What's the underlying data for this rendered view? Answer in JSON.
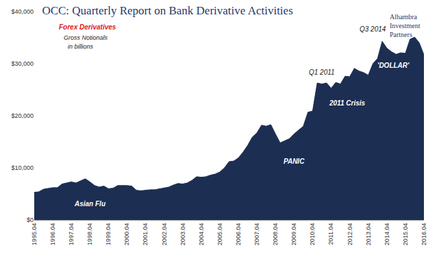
{
  "chart_data": {
    "type": "area",
    "title": "OCC: Quarterly Report on Bank Derivative Activities",
    "logo": [
      "Alhambra",
      "Investment",
      "Partners"
    ],
    "annotations": [
      "Forex Derivatives",
      "Gross Notionals",
      "in billions",
      "Asian Flu",
      "PANIC",
      "Q1 2011",
      "2011 Crisis",
      "Q3 2014",
      "'DOLLAR'"
    ],
    "categories": [
      "1995.04",
      null,
      null,
      null,
      "1996.04",
      null,
      null,
      null,
      "1997.04",
      null,
      null,
      null,
      "1998.04",
      null,
      null,
      null,
      "1999.04",
      null,
      null,
      null,
      "2000.04",
      null,
      null,
      null,
      "2001.04",
      null,
      null,
      null,
      "2002.04",
      null,
      null,
      null,
      "2003.04",
      null,
      null,
      null,
      "2004.04",
      null,
      null,
      null,
      "2005.04",
      null,
      null,
      null,
      "2006.04",
      null,
      null,
      null,
      "2007.04",
      null,
      null,
      null,
      "2008.04",
      null,
      null,
      null,
      "2009.04",
      null,
      null,
      null,
      "2010.04",
      null,
      null,
      null,
      "2011.04",
      null,
      null,
      null,
      "2012.04",
      null,
      null,
      null,
      "2013.04",
      null,
      null,
      null,
      "2014.04",
      null,
      null,
      null,
      "2015.04",
      null,
      null,
      null,
      "2016.04"
    ],
    "values": [
      5300,
      5400,
      5900,
      6100,
      6200,
      6200,
      6900,
      7100,
      7300,
      7100,
      7500,
      7900,
      7300,
      6600,
      6300,
      6500,
      6000,
      6100,
      6600,
      6600,
      6600,
      6500,
      5700,
      5600,
      5700,
      5800,
      5800,
      6000,
      6100,
      6300,
      6700,
      7000,
      6900,
      7100,
      7600,
      8300,
      8200,
      8300,
      8600,
      8800,
      9200,
      10000,
      11200,
      11300,
      11900,
      13000,
      14300,
      15900,
      16700,
      18200,
      18000,
      18300,
      16500,
      14800,
      15200,
      15600,
      16500,
      17300,
      18000,
      20700,
      20900,
      26300,
      26100,
      26300,
      25300,
      26400,
      26100,
      27600,
      27500,
      29100,
      28600,
      28300,
      27800,
      30000,
      31000,
      34300,
      33000,
      32300,
      31800,
      32100,
      32000,
      34700,
      35100,
      34000,
      31700
    ],
    "color": "#1c2e52",
    "ylim": [
      0,
      40000
    ],
    "yticks": [
      {
        "value": 0,
        "label": "$0"
      },
      {
        "value": 10000,
        "label": "$10,000"
      },
      {
        "value": 20000,
        "label": "$20,000"
      },
      {
        "value": 30000,
        "label": "$30,000"
      },
      {
        "value": 40000,
        "label": "$40,000"
      }
    ],
    "grid": false
  }
}
